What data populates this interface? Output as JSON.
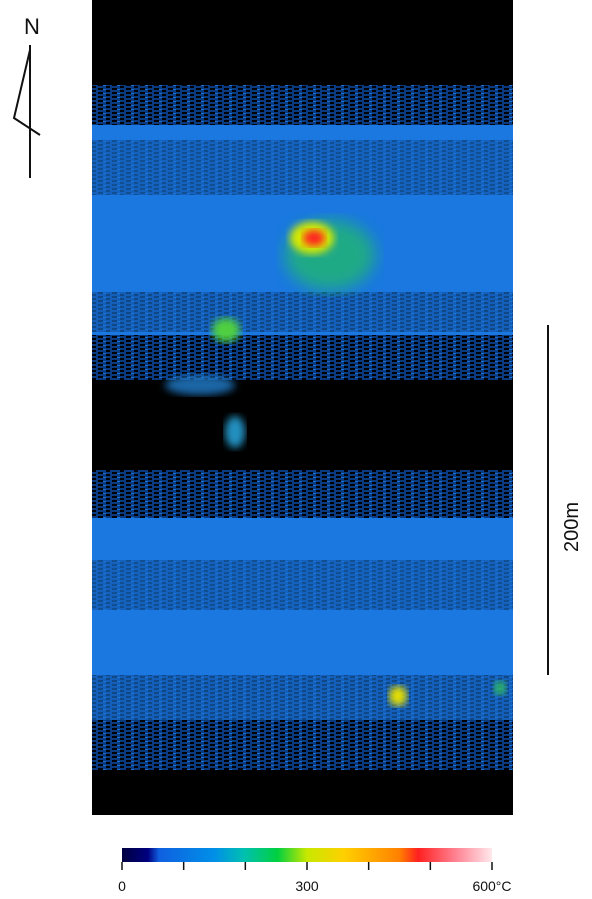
{
  "north_arrow": {
    "label": "N"
  },
  "scale_bar": {
    "label": "200m"
  },
  "colorbar": {
    "range": [
      0,
      600
    ],
    "ticks": [
      0,
      100,
      200,
      300,
      400,
      500,
      600
    ],
    "labels": [
      0,
      300,
      {
        "value": 600,
        "label": "600°C"
      }
    ]
  }
}
